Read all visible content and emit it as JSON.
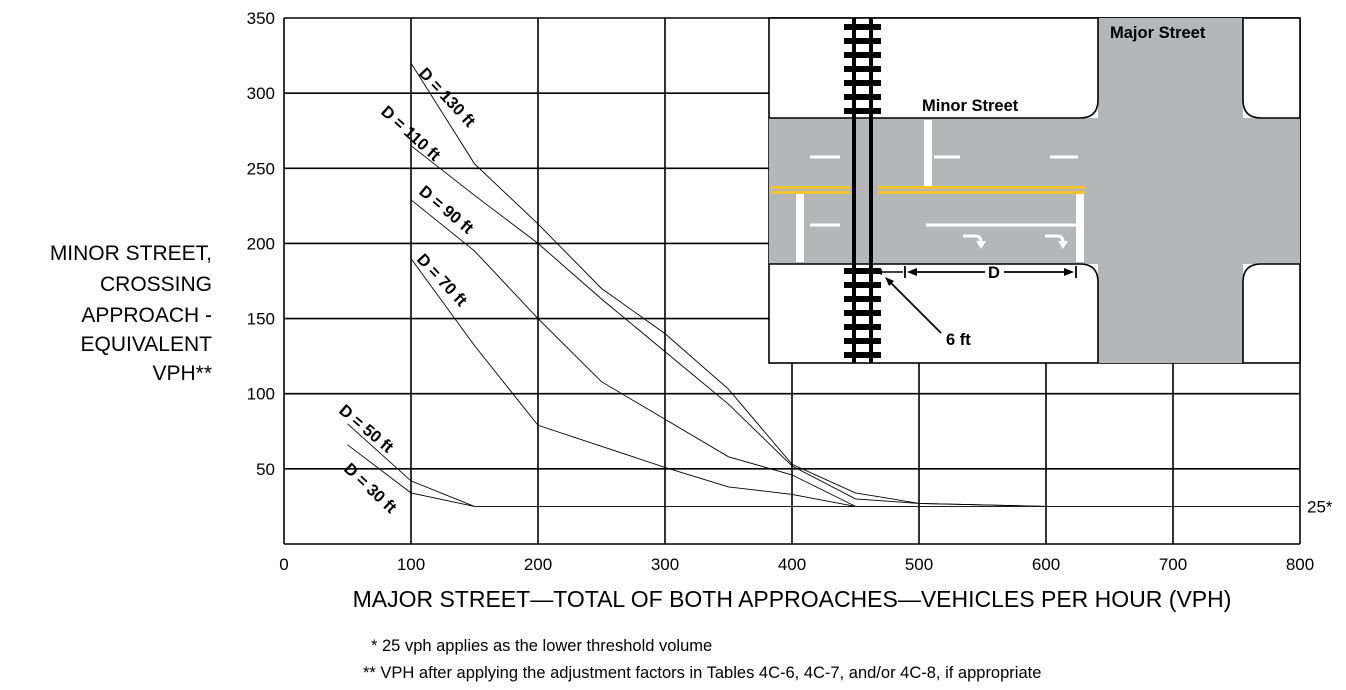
{
  "chart_data": {
    "type": "line",
    "xlabel": "MAJOR STREET—TOTAL OF BOTH APPROACHES—VEHICLES PER HOUR (VPH)",
    "ylabel_lines": [
      "MINOR STREET,",
      "CROSSING",
      "APPROACH -",
      "EQUIVALENT",
      "VPH**"
    ],
    "xlim": [
      0,
      800
    ],
    "ylim": [
      0,
      350
    ],
    "x_ticks": [
      0,
      100,
      200,
      300,
      400,
      500,
      600,
      700,
      800
    ],
    "y_ticks": [
      50,
      100,
      150,
      200,
      250,
      300,
      350
    ],
    "grid": true,
    "threshold": {
      "value": 25,
      "label": "25*"
    },
    "series": [
      {
        "name": "D = 130 ft",
        "points": [
          [
            100,
            320
          ],
          [
            150,
            253
          ],
          [
            200,
            213
          ],
          [
            250,
            170
          ],
          [
            300,
            140
          ],
          [
            350,
            103
          ],
          [
            400,
            53
          ],
          [
            450,
            34
          ],
          [
            500,
            27
          ],
          [
            600,
            25
          ]
        ]
      },
      {
        "name": "D = 110 ft",
        "points": [
          [
            100,
            265
          ],
          [
            150,
            232
          ],
          [
            200,
            200
          ],
          [
            250,
            163
          ],
          [
            300,
            128
          ],
          [
            350,
            93
          ],
          [
            400,
            52
          ],
          [
            450,
            30
          ],
          [
            500,
            27
          ],
          [
            600,
            25
          ]
        ]
      },
      {
        "name": "D = 90 ft",
        "points": [
          [
            100,
            229
          ],
          [
            150,
            195
          ],
          [
            200,
            150
          ],
          [
            250,
            108
          ],
          [
            300,
            83
          ],
          [
            350,
            58
          ],
          [
            400,
            46
          ],
          [
            450,
            25
          ]
        ]
      },
      {
        "name": "D = 70 ft",
        "points": [
          [
            100,
            190
          ],
          [
            150,
            132
          ],
          [
            200,
            79
          ],
          [
            250,
            65
          ],
          [
            300,
            51
          ],
          [
            350,
            38
          ],
          [
            400,
            33
          ],
          [
            450,
            25
          ]
        ]
      },
      {
        "name": "D = 50 ft",
        "points": [
          [
            50,
            80
          ],
          [
            100,
            42
          ],
          [
            150,
            25
          ]
        ]
      },
      {
        "name": "D = 30 ft",
        "points": [
          [
            50,
            66
          ],
          [
            100,
            34
          ],
          [
            150,
            25
          ]
        ]
      }
    ]
  },
  "inset": {
    "major_street_label": "Major  Street",
    "minor_street_label": "Minor Street",
    "distance_label": "D",
    "clearance_label": "6 ft"
  },
  "footnotes": {
    "note1": "*  25 vph applies as the lower threshold volume",
    "note2": "**  VPH after applying the adjustment factors in Tables 4C-6, 4C-7, and/or 4C-8, if appropriate"
  },
  "colors": {
    "grid": "#000000",
    "road": "#b4b6b8",
    "yellow_line": "#f2c431",
    "series_line": "#000000"
  }
}
